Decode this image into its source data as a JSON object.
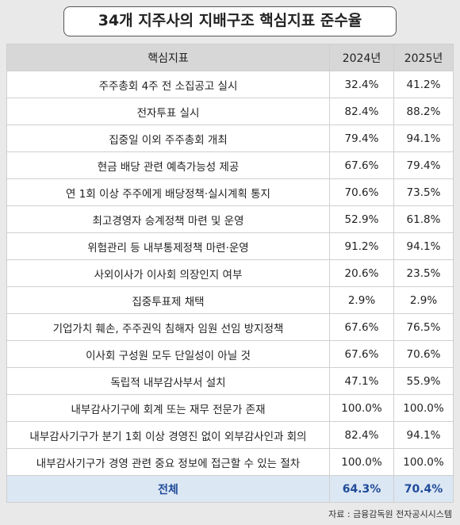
{
  "title": "34개 지주사의 지배구조 핵심지표 준수율",
  "table": {
    "header": [
      "핵심지표",
      "2024년",
      "2025년"
    ],
    "rows": [
      [
        "주주총회 4주 전 소집공고 실시",
        "32.4%",
        "41.2%"
      ],
      [
        "전자투표 실시",
        "82.4%",
        "88.2%"
      ],
      [
        "집중일 이외 주주총회 개최",
        "79.4%",
        "94.1%"
      ],
      [
        "현금 배당 관련 예측가능성 제공",
        "67.6%",
        "79.4%"
      ],
      [
        "연 1회 이상 주주에게 배당정책·실시계획 통지",
        "70.6%",
        "73.5%"
      ],
      [
        "최고경영자 승계정책 마련 및 운영",
        "52.9%",
        "61.8%"
      ],
      [
        "위험관리 등 내부통제정책 마련·운영",
        "91.2%",
        "94.1%"
      ],
      [
        "사외이사가 이사회 의장인지 여부",
        "20.6%",
        "23.5%"
      ],
      [
        "집중투표제 채택",
        "2.9%",
        "2.9%"
      ],
      [
        "기업가치 훼손, 주주권익 침해자 임원 선임 방지정책",
        "67.6%",
        "76.5%"
      ],
      [
        "이사회 구성원 모두 단일성이 아닐 것",
        "67.6%",
        "70.6%"
      ],
      [
        "독립적 내부감사부서 설치",
        "47.1%",
        "55.9%"
      ],
      [
        "내부감사기구에 회계 또는 재무 전문가 존재",
        "100.0%",
        "100.0%"
      ],
      [
        "내부감사기구가 분기 1회 이상 경영진 없이 외부감사인과 회의",
        "82.4%",
        "94.1%"
      ],
      [
        "내부감사기구가 경영 관련 중요 정보에 접근할 수 있는 절차",
        "100.0%",
        "100.0%"
      ]
    ],
    "total": [
      "전체",
      "64.3%",
      "70.4%"
    ]
  },
  "source": "자료 : 금융감독원 전자공시시스템"
}
